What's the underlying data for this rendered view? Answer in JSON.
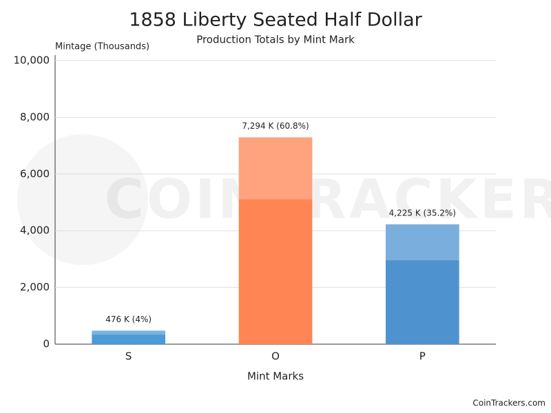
{
  "chart_data": {
    "type": "bar",
    "title": "1858 Liberty Seated Half Dollar",
    "subtitle": "Production Totals by Mint Mark",
    "y_axis_label": "Mintage (Thousands)",
    "x_axis_label": "Mint Marks",
    "categories": [
      "S",
      "O",
      "P"
    ],
    "values": [
      476,
      7294,
      4225
    ],
    "value_labels": [
      "476 K (4%)",
      "7,294 K (60.8%)",
      "4,225 K (35.2%)"
    ],
    "colors": [
      "#4c9ad6",
      "#ff8555",
      "#4e93d0"
    ],
    "ylim": [
      0,
      10000
    ],
    "yticks": [
      0,
      {
        "value": 2000,
        "label": "2,000"
      },
      {
        "value": 4000,
        "label": "4,000"
      },
      {
        "value": 6000,
        "label": "6,000"
      },
      {
        "value": 8000,
        "label": "8,000"
      },
      {
        "value": 10000,
        "label": "10,000"
      }
    ],
    "grid": true,
    "watermark": "COINTRACKERS",
    "source": "CoinTrackers.com"
  }
}
